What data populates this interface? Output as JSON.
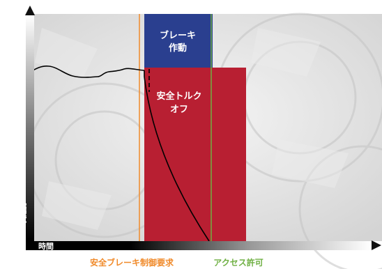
{
  "axes": {
    "y_label": "実速度",
    "x_label": "時間"
  },
  "regions": {
    "brake": {
      "label_line1": "ブレーキ",
      "label_line2": "作動",
      "color": "#2a3f8f"
    },
    "safe_torque_off": {
      "label_line1": "安全トルク",
      "label_line2": "オフ",
      "color": "#b81f32"
    }
  },
  "markers": {
    "safe_brake_request": {
      "label": "安全ブレーキ制御要求",
      "color": "#f08a2a"
    },
    "access_permit": {
      "label": "アクセス許可",
      "color": "#6fb043"
    }
  },
  "colors": {
    "axis": "#111111",
    "curve": "#000000",
    "background_gear": "#dcdcdc"
  }
}
